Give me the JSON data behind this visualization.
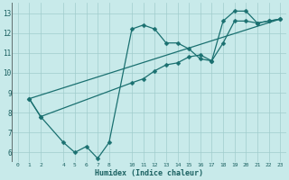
{
  "xlabel": "Humidex (Indice chaleur)",
  "background_color": "#c8eaea",
  "grid_color": "#a0cccc",
  "line_color": "#1a7070",
  "xlim": [
    -0.5,
    23.5
  ],
  "ylim": [
    5.5,
    13.5
  ],
  "xticks": [
    0,
    1,
    2,
    4,
    5,
    6,
    7,
    8,
    10,
    11,
    12,
    13,
    14,
    15,
    16,
    17,
    18,
    19,
    20,
    21,
    22,
    23
  ],
  "yticks": [
    6,
    7,
    8,
    9,
    10,
    11,
    12,
    13
  ],
  "line1_x": [
    1,
    2,
    4,
    5,
    6,
    7,
    8,
    10,
    11,
    12,
    13,
    14,
    15,
    16,
    17,
    18,
    19,
    20,
    21,
    22,
    23
  ],
  "line1_y": [
    8.7,
    7.8,
    6.5,
    6.0,
    6.3,
    5.7,
    6.5,
    12.2,
    12.4,
    12.2,
    11.5,
    11.5,
    11.2,
    10.7,
    10.6,
    12.6,
    13.1,
    13.1,
    12.5,
    12.6,
    12.7
  ],
  "line2_x": [
    1,
    2,
    10,
    11,
    12,
    13,
    14,
    15,
    16,
    17,
    18,
    19,
    20,
    21,
    22,
    23
  ],
  "line2_y": [
    8.7,
    7.8,
    9.5,
    9.7,
    10.1,
    10.4,
    10.5,
    10.8,
    10.9,
    10.6,
    11.5,
    12.6,
    12.6,
    12.5,
    12.6,
    12.7
  ],
  "line3_x": [
    1,
    23
  ],
  "line3_y": [
    8.7,
    12.7
  ]
}
